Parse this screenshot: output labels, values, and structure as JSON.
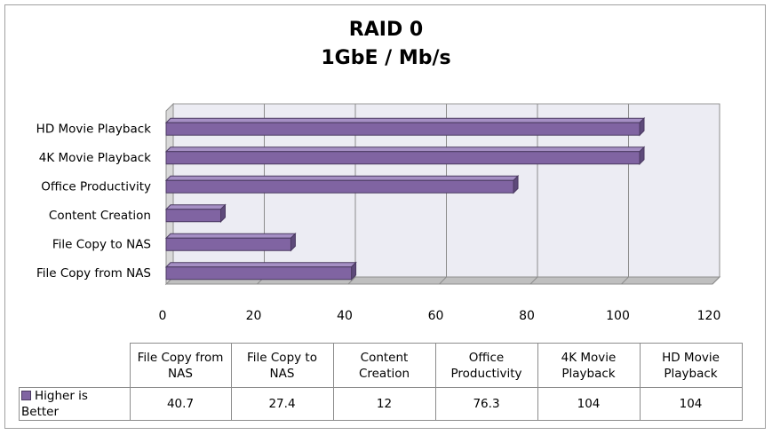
{
  "chart_data": {
    "type": "bar",
    "orientation": "horizontal",
    "title": "RAID 0",
    "subtitle": "1GbE / Mb/s",
    "categories": [
      "File Copy from NAS",
      "File Copy to NAS",
      "Content Creation",
      "Office Productivity",
      "4K Movie Playback",
      "HD Movie Playback"
    ],
    "series": [
      {
        "name": "Higher is Better",
        "values": [
          40.7,
          27.4,
          12,
          76.3,
          104,
          104
        ],
        "value_labels": [
          "40.7",
          "27.4",
          "12",
          "76.3",
          "104",
          "104"
        ]
      }
    ],
    "xlim": [
      0,
      120
    ],
    "xticks": [
      0,
      20,
      40,
      60,
      80,
      100,
      120
    ],
    "grid": true,
    "legend_placement": "data-table",
    "bar_color": "#8064a2",
    "table": {
      "headers": [
        "File Copy from NAS",
        "File Copy to NAS",
        "Content Creation",
        "Office Productivity",
        "4K Movie Playback",
        "HD Movie Playback"
      ],
      "legend_label": "Higher is Better",
      "values": [
        "40.7",
        "27.4",
        "12",
        "76.3",
        "104",
        "104"
      ]
    }
  }
}
